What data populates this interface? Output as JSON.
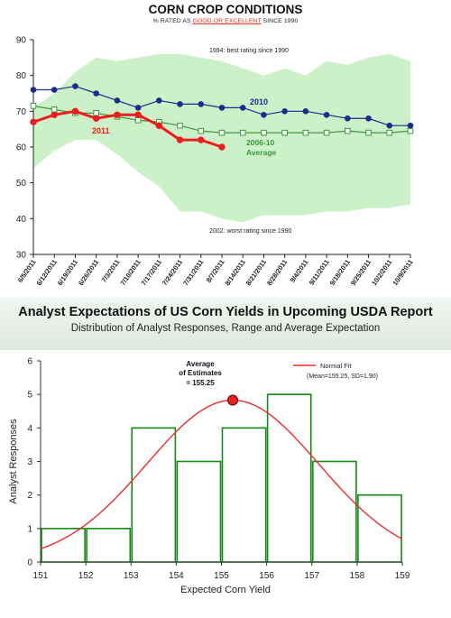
{
  "charts": {
    "top": {
      "title": "CORN CROP CONDITIONS",
      "subtitle_pre": "% RATED AS ",
      "subtitle_highlight": "GOOD OR EXCELLENT",
      "subtitle_post": " SINCE 1990",
      "band_top_label": "1994: best rating since 1990",
      "band_bottom_label": "2002: worst rating since 1990",
      "series_2010_label": "2010",
      "series_2011_label": "2011",
      "series_avg_label_1": "2006-10",
      "series_avg_label_2": "Average"
    },
    "bottom": {
      "title": "Analyst Expectations of US Corn Yields in Upcoming USDA Report",
      "subtitle": "Distribution of Analyst Responses, Range and Average Expectation",
      "ylabel": "Analyst Responses",
      "xlabel": "Expected Corn Yield",
      "legend_label": "Normal Fit",
      "legend_note": "(Mean=155.25, SD=1.90)",
      "avg_label_1": "Average",
      "avg_label_2": "of Estimates",
      "avg_label_3": "= 155.25"
    }
  },
  "colors": {
    "band": "#ccf0c8",
    "series_2010": "#1f2a8c",
    "series_2011": "#ee1c1c",
    "series_avg": "#3a9a3a",
    "histogram": "#138a13",
    "normal_fit": "#ee2b2b",
    "marker": "#e8231e"
  },
  "chart_data": [
    {
      "type": "line",
      "title": "CORN CROP CONDITIONS",
      "subtitle": "% RATED AS GOOD OR EXCELLENT SINCE 1990",
      "ylim": [
        30,
        90
      ],
      "yticks": [
        30,
        40,
        50,
        60,
        70,
        80,
        90
      ],
      "grid": false,
      "x": [
        "6/5/2011",
        "6/12/2011",
        "6/19/2011",
        "6/26/2011",
        "7/3/2011",
        "7/10/2011",
        "7/17/2011",
        "7/24/2011",
        "7/31/2011",
        "8/7/2011",
        "8/14/2011",
        "8/21/2011",
        "8/28/2011",
        "9/4/2011",
        "9/11/2011",
        "9/18/2011",
        "9/25/2011",
        "10/2/2011",
        "10/9/2011"
      ],
      "band": {
        "upper": [
          71,
          75,
          81,
          85,
          84,
          85,
          86,
          86,
          85,
          84,
          82,
          80,
          82,
          80,
          84,
          83,
          85,
          86,
          84
        ],
        "lower": [
          54,
          59,
          62,
          62,
          58,
          53,
          49,
          42,
          42,
          40,
          39,
          41,
          41,
          41,
          42,
          42,
          43,
          43,
          44
        ]
      },
      "series": [
        {
          "name": "2010",
          "values": [
            76,
            76,
            77,
            75,
            73,
            71,
            73,
            72,
            72,
            71,
            71,
            69,
            70,
            70,
            69,
            68,
            68,
            66,
            66
          ]
        },
        {
          "name": "2011",
          "values": [
            67,
            69,
            70,
            68,
            69,
            69,
            66,
            62,
            62,
            60,
            null,
            null,
            null,
            null,
            null,
            null,
            null,
            null,
            null
          ]
        },
        {
          "name": "2006-10 Average",
          "values": [
            71.5,
            70.5,
            69.5,
            69.5,
            68.5,
            67.5,
            67,
            66,
            64.5,
            64,
            64,
            64,
            64,
            64,
            64,
            64.5,
            64,
            64,
            64.5
          ]
        }
      ],
      "annotations": [
        "1994: best rating since 1990",
        "2002: worst rating since 1990"
      ]
    },
    {
      "type": "bar",
      "title": "Analyst Expectations of US Corn Yields in Upcoming USDA Report",
      "subtitle": "Distribution of Analyst Responses, Range and Average Expectation",
      "xlabel": "Expected Corn Yield",
      "ylabel": "Analyst Responses",
      "xlim": [
        151,
        159
      ],
      "ylim": [
        0,
        6
      ],
      "xticks": [
        151,
        152,
        153,
        154,
        155,
        156,
        157,
        158,
        159
      ],
      "yticks": [
        0,
        1,
        2,
        3,
        4,
        5,
        6
      ],
      "bins": [
        {
          "from": 151,
          "to": 152,
          "count": 1
        },
        {
          "from": 152,
          "to": 153,
          "count": 1
        },
        {
          "from": 153,
          "to": 154,
          "count": 4
        },
        {
          "from": 154,
          "to": 155,
          "count": 3
        },
        {
          "from": 155,
          "to": 156,
          "count": 4
        },
        {
          "from": 156,
          "to": 157,
          "count": 5
        },
        {
          "from": 157,
          "to": 158,
          "count": 3
        },
        {
          "from": 158,
          "to": 159,
          "count": 2
        }
      ],
      "normal_fit": {
        "mean": 155.25,
        "sd": 1.9,
        "label": "Normal Fit"
      },
      "average": 155.25,
      "legend": "top-right"
    }
  ]
}
